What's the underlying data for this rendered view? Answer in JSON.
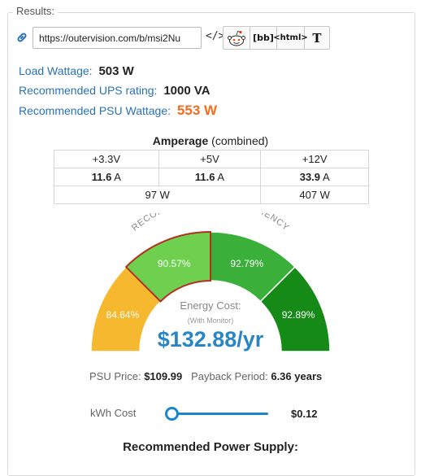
{
  "legend": "Results:",
  "share": {
    "url": "https://outervision.com/b/msi2Nu",
    "code_label": "</>",
    "buttons": [
      "[bb]",
      "<html>",
      "T"
    ]
  },
  "stats": {
    "load_label": "Load Wattage:",
    "load_value": "503 W",
    "ups_label": "Recommended UPS rating:",
    "ups_value": "1000 VA",
    "psu_label": "Recommended PSU Wattage:",
    "psu_value": "553 W"
  },
  "amperage": {
    "title": "Amperage",
    "subtitle": "(combined)",
    "headers": [
      "+3.3V",
      "+5V",
      "+12V"
    ],
    "amps": [
      "11.6",
      "11.6",
      "33.9"
    ],
    "unit": "A",
    "watts": [
      "97 W",
      "407 W"
    ]
  },
  "gauge": {
    "arc_label": "RECOMMENDED PSU EFFICIENCY",
    "segments": [
      {
        "label": "84.64%",
        "color": "#f5b82e"
      },
      {
        "label": "90.57%",
        "color": "#6fcf4f"
      },
      {
        "label": "92.79%",
        "color": "#3ab03a"
      },
      {
        "label": "92.89%",
        "color": "#158a17"
      }
    ],
    "highlight_index": 1,
    "energy_label": "Energy Cost:",
    "monitor_label": "(With Monitor)",
    "cost": "$132.88/yr"
  },
  "price": {
    "psu_label": "PSU Price:",
    "psu_value": "$109.99",
    "payback_label": "Payback Period:",
    "payback_value": "6.36 years"
  },
  "kwh": {
    "label": "kWh Cost",
    "value": "$0.12"
  },
  "recommended_title": "Recommended Power Supply:",
  "colors": {
    "accent": "#2a72b5",
    "orange": "#f26c22",
    "cost_blue": "#2a85c4",
    "highlight_border": "#b5301f"
  }
}
